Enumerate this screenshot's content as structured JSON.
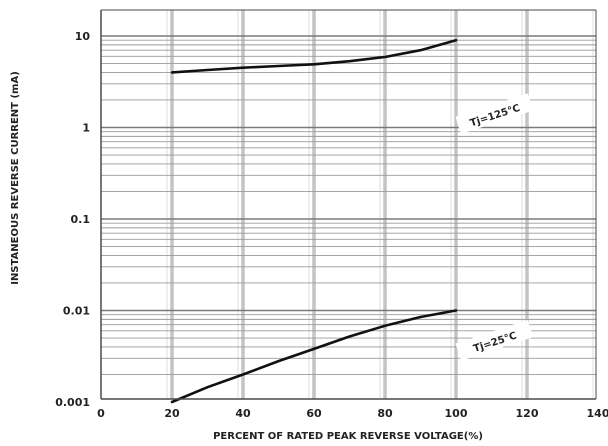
{
  "chart_data": {
    "type": "line",
    "title": "",
    "xlabel": "PERCENT OF RATED PEAK REVERSE VOLTAGE(%)",
    "ylabel": "INSTANEOUS REVERSE CURRENT (mA)",
    "y_scale": "log",
    "xlim": [
      0,
      140
    ],
    "ylim": [
      0.001,
      15
    ],
    "x_ticks": [
      0,
      20,
      40,
      60,
      80,
      100,
      120,
      140
    ],
    "x_tick_labels": [
      "0",
      "20",
      "40",
      "60",
      "80",
      "100",
      "120",
      "140"
    ],
    "y_ticks": [
      0.001,
      0.01,
      0.1,
      1,
      10
    ],
    "y_tick_labels": [
      "0.001",
      "0.01",
      "0.1",
      "1",
      "10"
    ],
    "grid": true,
    "legend": "none",
    "series": [
      {
        "name": "Tj=125°C",
        "x": [
          20,
          30,
          40,
          50,
          60,
          70,
          80,
          90,
          100
        ],
        "y": [
          4.0,
          4.25,
          4.5,
          4.7,
          4.9,
          5.3,
          5.9,
          7.0,
          9.0
        ]
      },
      {
        "name": "Tj=25°C",
        "x": [
          20,
          30,
          40,
          50,
          60,
          70,
          80,
          90,
          100
        ],
        "y": [
          0.001,
          0.00145,
          0.002,
          0.0028,
          0.0038,
          0.0052,
          0.0068,
          0.0085,
          0.01
        ]
      }
    ],
    "annotations": [
      {
        "text": "Tj=125°C",
        "x": 111,
        "y": 1.35
      },
      {
        "text": "Tj=25°C",
        "x": 111,
        "y": 0.0045
      }
    ]
  },
  "colors": {
    "curve": "#111111",
    "major_grid": "#c4c4c4",
    "minor_grid": "#9a9a9a",
    "axis": "#4a4a4a",
    "text": "#222222"
  }
}
